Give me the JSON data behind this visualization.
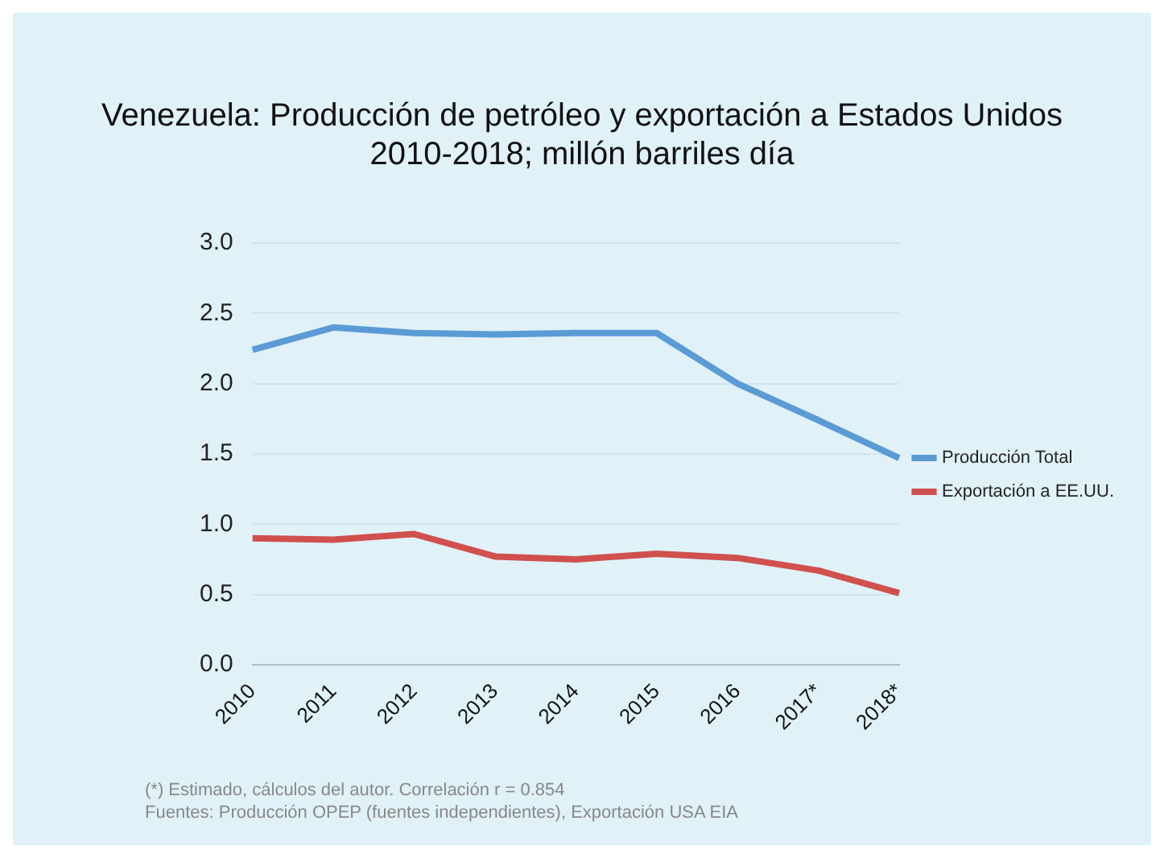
{
  "chart_data": {
    "type": "line",
    "title": "Venezuela: Producción de petróleo y exportación a Estados Unidos",
    "subtitle": "2010-2018; millón barriles día",
    "categories": [
      "2010",
      "2011",
      "2012",
      "2013",
      "2014",
      "2015",
      "2016",
      "2017*",
      "2018*"
    ],
    "series": [
      {
        "name": "Producción Total",
        "color": "#5b9bd5",
        "values": [
          2.24,
          2.4,
          2.36,
          2.35,
          2.36,
          2.36,
          2.0,
          1.74,
          1.47
        ]
      },
      {
        "name": "Exportación a EE.UU.",
        "color": "#d0504d",
        "values": [
          0.9,
          0.89,
          0.93,
          0.77,
          0.75,
          0.79,
          0.76,
          0.67,
          0.51
        ]
      }
    ],
    "ylim": [
      0,
      3
    ],
    "yticks": [
      {
        "value": 0,
        "label": "0.0"
      },
      0.5,
      {
        "value": 1,
        "label": "1.0"
      },
      1.5,
      {
        "value": 2,
        "label": "2.0"
      },
      2.5,
      {
        "value": 3,
        "label": "3.0"
      }
    ],
    "grid": "y",
    "legend": "right",
    "marker": "none",
    "line_style": "solid",
    "annotations": [
      "(*) Estimado, cálculos del autor. Correlación r = 0.854",
      "Fuentes: Producción OPEP (fuentes independientes), Exportación USA EIA"
    ]
  }
}
